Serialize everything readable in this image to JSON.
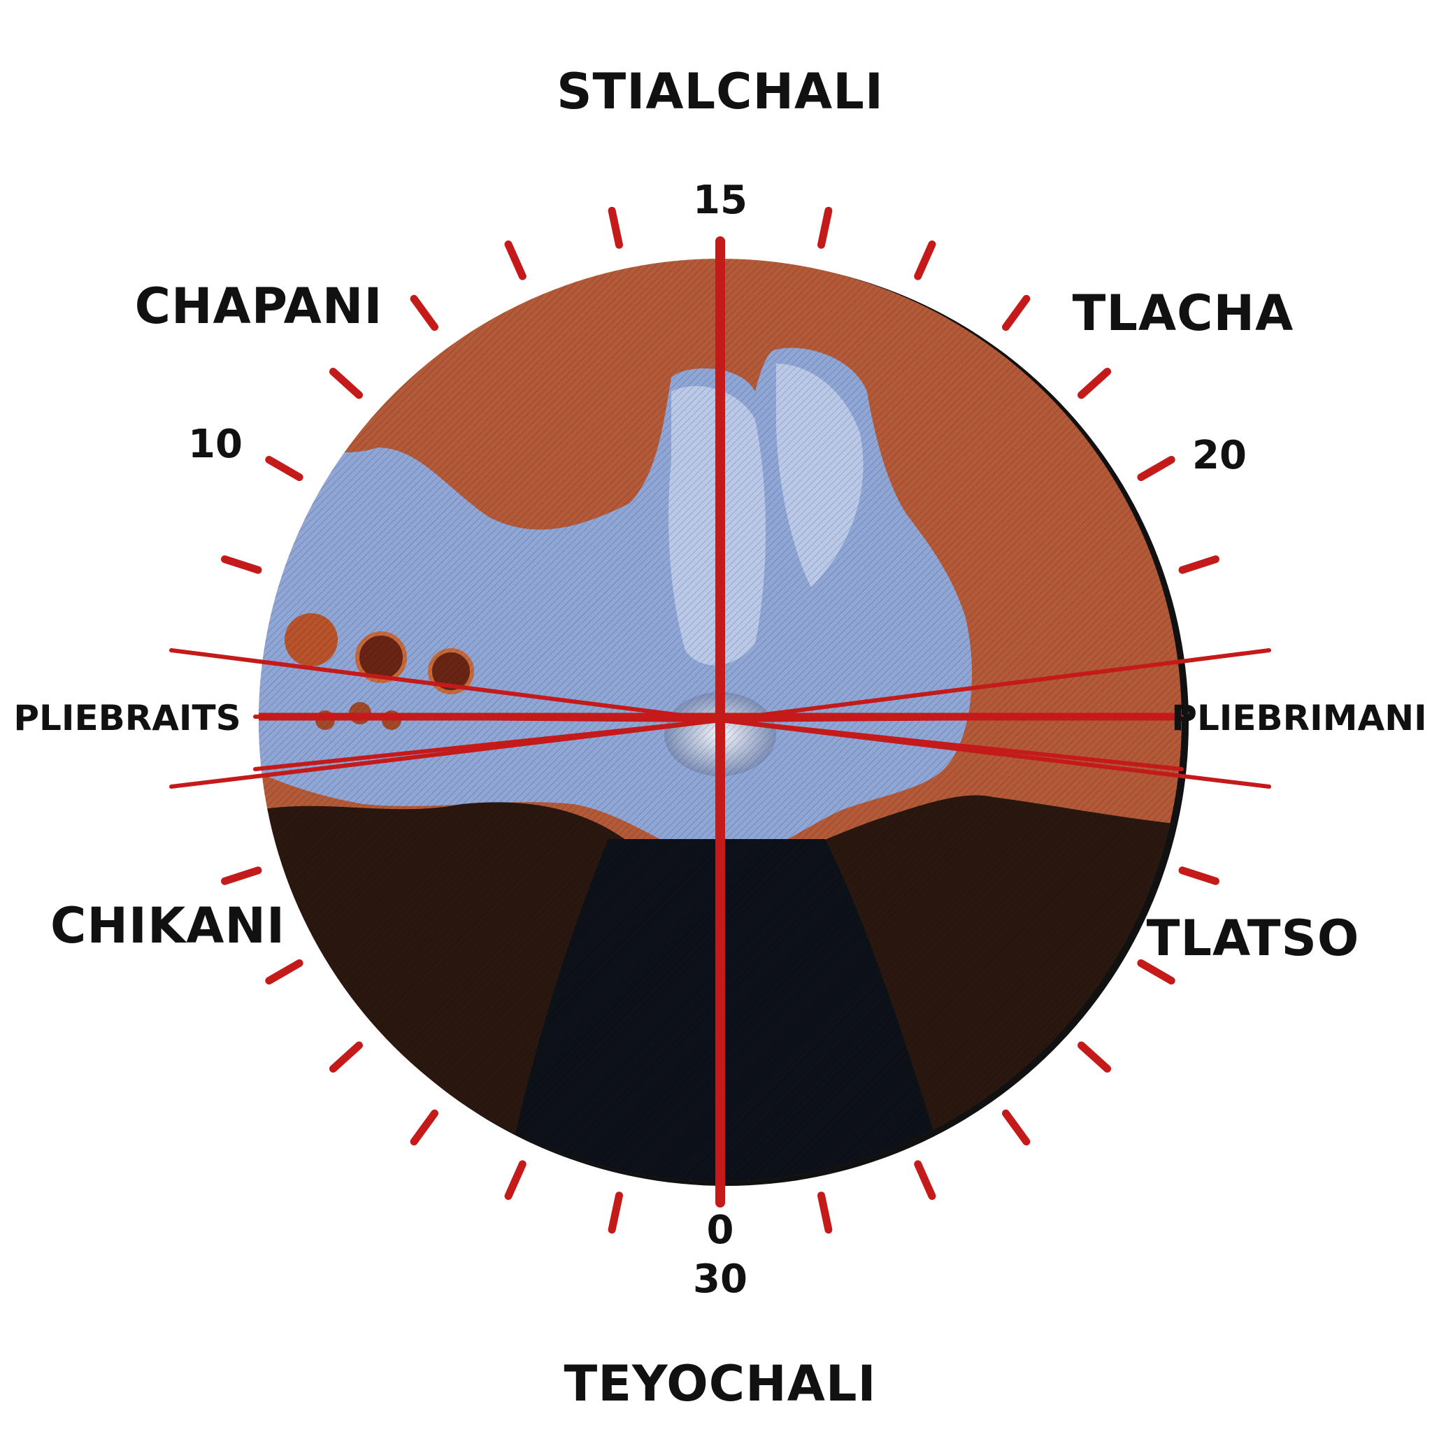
{
  "labels": {
    "north": "STIALCHALI",
    "south": "TEYOCHALI",
    "northwest": "CHAPANI",
    "northeast": "TLACHA",
    "southwest": "CHIKANI",
    "southeast": "TLATSO",
    "west": "PLIEBRAITS",
    "east": "PLIEBRIMANI"
  },
  "numbers": {
    "top": "15",
    "left": "10",
    "right": "20",
    "bottom_inner": "0",
    "bottom_outer": "30"
  },
  "colors": {
    "ink": "#111111",
    "marker_red": "#c41a1a",
    "land_rust": "#b45a38",
    "land_dark": "#2a1810",
    "sea_blue": "#8fa6d6",
    "sea_pale": "#c9d4ee",
    "night": "#0d1118"
  }
}
